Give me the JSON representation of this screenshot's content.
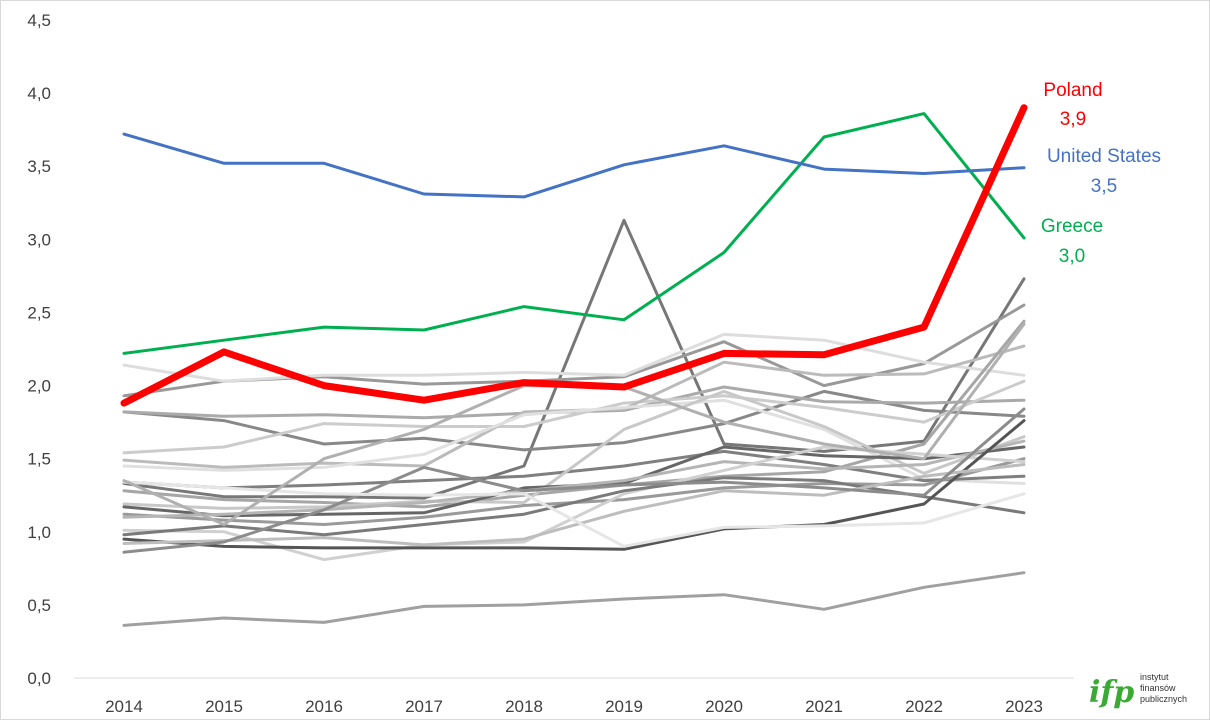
{
  "chart_data": {
    "type": "line",
    "title": "",
    "xlabel": "",
    "ylabel": "",
    "x": [
      "2014",
      "2015",
      "2016",
      "2017",
      "2018",
      "2019",
      "2020",
      "2021",
      "2022",
      "2023"
    ],
    "ylim": [
      0,
      4.5
    ],
    "yticks": [
      "0,0",
      "0,5",
      "1,0",
      "1,5",
      "2,0",
      "2,5",
      "3,0",
      "3,5",
      "4,0",
      "4,5"
    ],
    "grid": false,
    "legend": "none",
    "highlighted": [
      {
        "name": "Poland",
        "label": "3,9",
        "color": "#ff0000",
        "values": [
          1.88,
          2.23,
          2.0,
          1.9,
          2.02,
          1.99,
          2.22,
          2.21,
          2.4,
          3.9
        ]
      },
      {
        "name": "United States",
        "label": "3,5",
        "color": "#4472c4",
        "values": [
          3.72,
          3.52,
          3.52,
          3.31,
          3.29,
          3.51,
          3.64,
          3.48,
          3.45,
          3.49
        ]
      },
      {
        "name": "Greece",
        "label": "3,0",
        "color": "#00b050",
        "values": [
          2.22,
          2.31,
          2.4,
          2.38,
          2.54,
          2.45,
          2.91,
          3.7,
          3.86,
          3.01
        ]
      }
    ],
    "background_series": [
      {
        "color": "#777777",
        "values": [
          1.33,
          1.24,
          1.24,
          1.23,
          1.45,
          3.13,
          1.6,
          1.55,
          1.62,
          2.73
        ]
      },
      {
        "color": "#999999",
        "values": [
          1.93,
          2.03,
          2.06,
          2.01,
          2.03,
          2.06,
          2.3,
          2.0,
          2.15,
          2.55
        ]
      },
      {
        "color": "#dddddd",
        "values": [
          2.14,
          2.03,
          2.07,
          2.07,
          2.09,
          2.07,
          2.35,
          2.31,
          2.16,
          2.07
        ]
      },
      {
        "color": "#888888",
        "values": [
          1.82,
          1.76,
          1.6,
          1.64,
          1.56,
          1.61,
          1.74,
          1.96,
          1.83,
          1.79
        ]
      },
      {
        "color": "#aaaaaa",
        "values": [
          1.82,
          1.79,
          1.8,
          1.78,
          1.81,
          1.83,
          1.99,
          1.89,
          1.88,
          1.9
        ]
      },
      {
        "color": "#cccccc",
        "values": [
          1.54,
          1.58,
          1.74,
          1.72,
          1.72,
          1.88,
          1.93,
          1.85,
          1.75,
          2.03
        ]
      },
      {
        "color": "#bbbbbb",
        "values": [
          1.49,
          1.44,
          1.47,
          1.45,
          1.82,
          1.84,
          2.16,
          2.07,
          2.08,
          2.27
        ]
      },
      {
        "color": "#e0e0e0",
        "values": [
          1.45,
          1.42,
          1.44,
          1.53,
          1.8,
          1.85,
          1.9,
          1.7,
          1.36,
          1.33
        ]
      },
      {
        "color": "#7f7f7f",
        "values": [
          1.34,
          1.3,
          1.32,
          1.35,
          1.38,
          1.45,
          1.55,
          1.46,
          1.35,
          1.38
        ]
      },
      {
        "color": "#a6a6a6",
        "values": [
          1.28,
          1.22,
          1.2,
          1.17,
          1.25,
          1.32,
          1.38,
          1.41,
          1.6,
          2.44
        ]
      },
      {
        "color": "#c8c8c8",
        "values": [
          1.19,
          1.16,
          1.17,
          1.21,
          1.2,
          1.7,
          1.96,
          1.72,
          1.4,
          1.65
        ]
      },
      {
        "color": "#666666",
        "values": [
          1.17,
          1.11,
          1.12,
          1.13,
          1.3,
          1.33,
          1.58,
          1.52,
          1.5,
          1.58
        ]
      },
      {
        "color": "#9a9a9a",
        "values": [
          1.12,
          1.08,
          1.05,
          1.1,
          1.18,
          1.22,
          1.3,
          1.33,
          1.32,
          1.5
        ]
      },
      {
        "color": "#b5b5b5",
        "values": [
          1.1,
          1.12,
          1.15,
          1.2,
          1.28,
          1.35,
          1.48,
          1.43,
          1.46,
          1.62
        ]
      },
      {
        "color": "#d0d0d0",
        "values": [
          1.01,
          1.0,
          0.81,
          0.91,
          0.93,
          1.26,
          1.42,
          1.58,
          1.53,
          1.48
        ]
      },
      {
        "color": "#7a7a7a",
        "values": [
          0.98,
          1.04,
          0.98,
          1.05,
          1.12,
          1.28,
          1.37,
          1.35,
          1.24,
          1.13
        ]
      },
      {
        "color": "#555555",
        "values": [
          0.95,
          0.9,
          0.89,
          0.89,
          0.89,
          0.88,
          1.02,
          1.05,
          1.19,
          1.76
        ]
      },
      {
        "color": "#bdbdbd",
        "values": [
          0.92,
          0.94,
          0.96,
          0.91,
          0.95,
          1.14,
          1.28,
          1.25,
          1.38,
          1.46
        ]
      },
      {
        "color": "#8c8c8c",
        "values": [
          0.86,
          0.93,
          1.15,
          1.44,
          1.28,
          1.32,
          1.34,
          1.3,
          1.25,
          1.84
        ]
      },
      {
        "color": "#e6e6e6",
        "values": [
          1.34,
          1.3,
          1.26,
          1.25,
          1.26,
          0.9,
          1.03,
          1.04,
          1.06,
          1.26
        ]
      },
      {
        "color": "#b0b0b0",
        "values": [
          1.35,
          1.05,
          1.5,
          1.7,
          2.0,
          1.99,
          1.75,
          1.6,
          1.5,
          2.42
        ]
      },
      {
        "color": "#a0a0a0",
        "values": [
          0.36,
          0.41,
          0.38,
          0.49,
          0.5,
          0.54,
          0.57,
          0.47,
          0.62,
          0.72
        ]
      }
    ]
  },
  "logo": {
    "mark": "ifp",
    "lines": [
      "instytut",
      "finansów",
      "publicznych"
    ],
    "color": "#3aaa35"
  }
}
